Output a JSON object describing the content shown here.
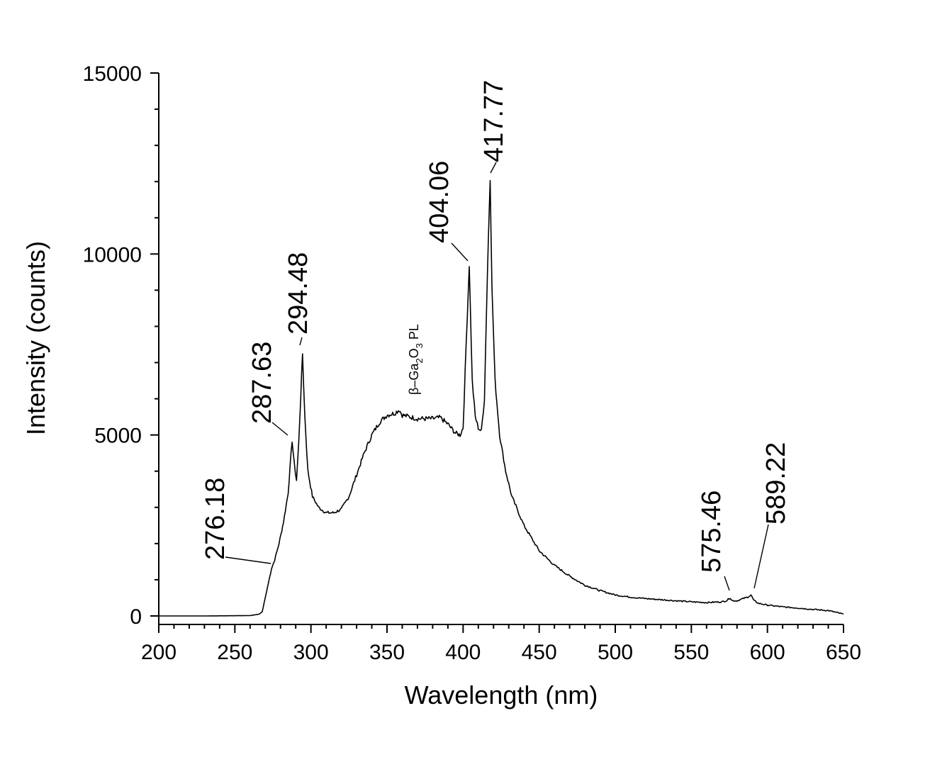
{
  "chart_data": {
    "type": "line",
    "title": "",
    "xlabel": "Wavelength (nm)",
    "ylabel": "Intensity (counts)",
    "xlim": [
      200,
      650
    ],
    "ylim": [
      0,
      15000
    ],
    "x_ticks": [
      200,
      250,
      300,
      350,
      400,
      450,
      500,
      550,
      600,
      650
    ],
    "y_ticks": [
      0,
      5000,
      10000,
      15000
    ],
    "grid": false,
    "legend": "none",
    "series": [
      {
        "x": [
          200,
          230,
          260,
          266,
          268,
          271,
          274,
          276.18,
          279,
          282,
          285,
          287.63,
          289,
          290.5,
          292,
          294.48,
          296,
          298,
          301,
          305,
          310,
          315,
          320,
          325,
          330,
          335,
          340,
          345,
          350,
          355,
          358,
          360,
          365,
          370,
          375,
          380,
          385,
          390,
          395,
          398,
          400,
          402,
          404.06,
          406,
          408,
          410,
          412,
          414,
          416,
          417.77,
          419,
          421,
          424,
          428,
          432,
          440,
          450,
          460,
          470,
          480,
          490,
          500,
          510,
          520,
          530,
          540,
          550,
          560,
          570,
          573,
          575.46,
          577,
          580,
          584,
          587,
          589.22,
          591,
          594,
          600,
          610,
          620,
          630,
          640,
          650
        ],
        "y": [
          0,
          0,
          10,
          50,
          120,
          700,
          1300,
          1550,
          2000,
          2600,
          3400,
          4850,
          4200,
          3750,
          4800,
          7250,
          5500,
          4000,
          3300,
          3000,
          2850,
          2850,
          2950,
          3300,
          3900,
          4500,
          5000,
          5350,
          5550,
          5600,
          5700,
          5550,
          5500,
          5450,
          5450,
          5450,
          5480,
          5300,
          5050,
          5000,
          5200,
          7500,
          9700,
          6500,
          5500,
          5200,
          5100,
          6000,
          9500,
          12100,
          9000,
          6500,
          5000,
          4000,
          3300,
          2500,
          1800,
          1400,
          1100,
          850,
          700,
          580,
          520,
          480,
          450,
          420,
          390,
          370,
          390,
          420,
          500,
          420,
          420,
          480,
          520,
          580,
          430,
          350,
          300,
          250,
          220,
          180,
          150,
          50
        ]
      }
    ],
    "annotations": [
      {
        "text": "276.18",
        "x": 276.18,
        "y": 1550
      },
      {
        "text": "287.63",
        "x": 287.63,
        "y": 4850
      },
      {
        "text": "294.48",
        "x": 294.48,
        "y": 7250
      },
      {
        "text": "404.06",
        "x": 404.06,
        "y": 9700
      },
      {
        "text": "417.77",
        "x": 417.77,
        "y": 12100
      },
      {
        "text": "575.46",
        "x": 575.46,
        "y": 500
      },
      {
        "text": "589.22",
        "x": 589.22,
        "y": 580
      }
    ],
    "inset_text": {
      "beta": "β",
      "dash": "–Ga",
      "sub2": "2",
      "o": "O",
      "sub3": "3",
      "pl": " PL"
    }
  }
}
